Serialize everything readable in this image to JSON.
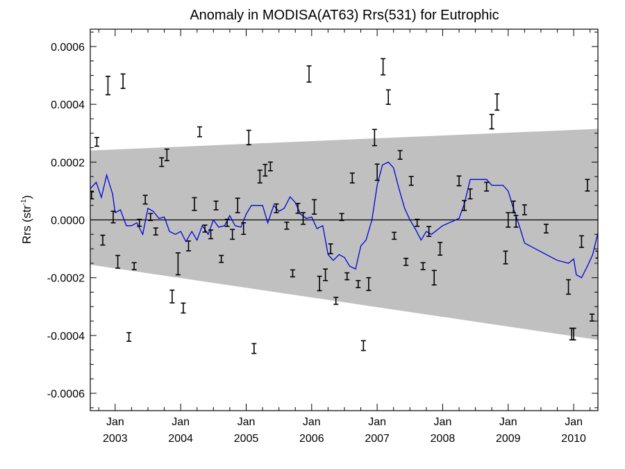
{
  "chart_data": {
    "type": "scatter",
    "title": "Anomaly in MODISA(AT63) Rrs(531) for Eutrophic",
    "ylabel_main": "Rrs (str",
    "ylabel_sup": "-1",
    "ylabel_close": ")",
    "xlabel": "",
    "xlim": [
      2002.62,
      2010.37
    ],
    "ylim": [
      -0.00066,
      0.00066
    ],
    "yticks": [
      -0.0006,
      -0.0004,
      -0.0002,
      0.0,
      0.0002,
      0.0004,
      0.0006
    ],
    "ytick_labels": [
      "-0.0006",
      "-0.0004",
      "-0.0002",
      "0.0000",
      "0.0002",
      "0.0004",
      "0.0006"
    ],
    "xticks": [
      {
        "value": 2003.0,
        "month": "Jan",
        "year": "2003"
      },
      {
        "value": 2004.0,
        "month": "Jan",
        "year": "2004"
      },
      {
        "value": 2005.0,
        "month": "Jan",
        "year": "2005"
      },
      {
        "value": 2006.0,
        "month": "Jan",
        "year": "2006"
      },
      {
        "value": 2007.0,
        "month": "Jan",
        "year": "2007"
      },
      {
        "value": 2008.0,
        "month": "Jan",
        "year": "2008"
      },
      {
        "value": 2009.0,
        "month": "Jan",
        "year": "2009"
      },
      {
        "value": 2010.0,
        "month": "Jan",
        "year": "2010"
      }
    ],
    "zero_line": 0.0,
    "band": {
      "color": "#c0c0c0",
      "upper": [
        [
          2002.62,
          0.00024
        ],
        [
          2010.37,
          0.000315
        ]
      ],
      "lower": [
        [
          2002.62,
          -0.000155
        ],
        [
          2010.37,
          -0.000415
        ]
      ]
    },
    "error_bars": {
      "color": "#000000",
      "points": [
        {
          "x": 2002.64,
          "y": 8.5e-05,
          "e": 1.2e-05
        },
        {
          "x": 2002.72,
          "y": 0.00027,
          "e": 1.5e-05
        },
        {
          "x": 2002.81,
          "y": -7e-05,
          "e": 1.7e-05
        },
        {
          "x": 2002.89,
          "y": 0.000465,
          "e": 3.2e-05
        },
        {
          "x": 2002.97,
          "y": 1e-05,
          "e": 2e-05
        },
        {
          "x": 2003.04,
          "y": -0.000145,
          "e": 2.2e-05
        },
        {
          "x": 2003.12,
          "y": 0.00048,
          "e": 2.5e-05
        },
        {
          "x": 2003.21,
          "y": -0.000405,
          "e": 1.5e-05
        },
        {
          "x": 2003.29,
          "y": -0.00016,
          "e": 1.2e-05
        },
        {
          "x": 2003.37,
          "y": -1e-05,
          "e": 1.2e-05
        },
        {
          "x": 2003.46,
          "y": 7e-05,
          "e": 1.5e-05
        },
        {
          "x": 2003.54,
          "y": 1e-05,
          "e": 1.2e-05
        },
        {
          "x": 2003.62,
          "y": -4e-05,
          "e": 1.2e-05
        },
        {
          "x": 2003.71,
          "y": 0.0002,
          "e": 1.5e-05
        },
        {
          "x": 2003.79,
          "y": 0.000225,
          "e": 2e-05
        },
        {
          "x": 2003.87,
          "y": -0.000265,
          "e": 2.2e-05
        },
        {
          "x": 2003.96,
          "y": -0.000152,
          "e": 3.8e-05
        },
        {
          "x": 2004.04,
          "y": -0.000305,
          "e": 1.7e-05
        },
        {
          "x": 2004.12,
          "y": -9e-05,
          "e": 1.7e-05
        },
        {
          "x": 2004.21,
          "y": 5.5e-05,
          "e": 2.2e-05
        },
        {
          "x": 2004.29,
          "y": 0.000305,
          "e": 1.7e-05
        },
        {
          "x": 2004.37,
          "y": -3e-05,
          "e": 1.2e-05
        },
        {
          "x": 2004.46,
          "y": -5e-05,
          "e": 1.5e-05
        },
        {
          "x": 2004.54,
          "y": 5e-05,
          "e": 1.5e-05
        },
        {
          "x": 2004.62,
          "y": -0.000135,
          "e": 1.2e-05
        },
        {
          "x": 2004.71,
          "y": -1e-05,
          "e": 1.2e-05
        },
        {
          "x": 2004.79,
          "y": -5e-05,
          "e": 1.7e-05
        },
        {
          "x": 2004.87,
          "y": 5e-05,
          "e": 2.5e-05
        },
        {
          "x": 2004.96,
          "y": -3e-05,
          "e": 2e-05
        },
        {
          "x": 2005.04,
          "y": 0.000285,
          "e": 2.5e-05
        },
        {
          "x": 2005.12,
          "y": -0.000445,
          "e": 1.7e-05
        },
        {
          "x": 2005.21,
          "y": 0.00015,
          "e": 2.2e-05
        },
        {
          "x": 2005.29,
          "y": 0.000172,
          "e": 2e-05
        },
        {
          "x": 2005.37,
          "y": 0.000185,
          "e": 1.5e-05
        },
        {
          "x": 2005.46,
          "y": 4e-05,
          "e": 1.5e-05
        },
        {
          "x": 2005.62,
          "y": -2e-05,
          "e": 1.2e-05
        },
        {
          "x": 2005.71,
          "y": -0.000185,
          "e": 1.2e-05
        },
        {
          "x": 2005.79,
          "y": 4e-05,
          "e": 1.7e-05
        },
        {
          "x": 2005.87,
          "y": 5e-06,
          "e": 2e-05
        },
        {
          "x": 2005.96,
          "y": 0.000505,
          "e": 2.8e-05
        },
        {
          "x": 2006.04,
          "y": 4.5e-05,
          "e": 2.5e-05
        },
        {
          "x": 2006.12,
          "y": -0.00022,
          "e": 2.5e-05
        },
        {
          "x": 2006.21,
          "y": -0.00019,
          "e": 2e-05
        },
        {
          "x": 2006.29,
          "y": -0.0001,
          "e": 1.7e-05
        },
        {
          "x": 2006.37,
          "y": -0.00028,
          "e": 1.2e-05
        },
        {
          "x": 2006.46,
          "y": 1e-05,
          "e": 1.2e-05
        },
        {
          "x": 2006.54,
          "y": -0.000195,
          "e": 1.2e-05
        },
        {
          "x": 2006.62,
          "y": 0.000145,
          "e": 1.7e-05
        },
        {
          "x": 2006.71,
          "y": -0.000222,
          "e": 1.2e-05
        },
        {
          "x": 2006.79,
          "y": -0.000435,
          "e": 1.7e-05
        },
        {
          "x": 2006.87,
          "y": -0.000222,
          "e": 2.2e-05
        },
        {
          "x": 2006.96,
          "y": 0.000285,
          "e": 2.8e-05
        },
        {
          "x": 2007.0,
          "y": 0.000165,
          "e": 2.8e-05
        },
        {
          "x": 2007.09,
          "y": 0.00053,
          "e": 2.8e-05
        },
        {
          "x": 2007.17,
          "y": 0.000425,
          "e": 2.5e-05
        },
        {
          "x": 2007.26,
          "y": -5.5e-05,
          "e": 1.2e-05
        },
        {
          "x": 2007.35,
          "y": 0.000225,
          "e": 1.5e-05
        },
        {
          "x": 2007.44,
          "y": -0.000145,
          "e": 1.2e-05
        },
        {
          "x": 2007.52,
          "y": 0.000135,
          "e": 1.5e-05
        },
        {
          "x": 2007.61,
          "y": -1e-05,
          "e": 1.2e-05
        },
        {
          "x": 2007.7,
          "y": -0.00016,
          "e": 1.2e-05
        },
        {
          "x": 2007.79,
          "y": -4e-05,
          "e": 1.7e-05
        },
        {
          "x": 2007.87,
          "y": -0.0002,
          "e": 2.5e-05
        },
        {
          "x": 2007.96,
          "y": -0.0001,
          "e": 2.2e-05
        },
        {
          "x": 2008.25,
          "y": 0.000135,
          "e": 1.7e-05
        },
        {
          "x": 2008.33,
          "y": 5e-05,
          "e": 1.7e-05
        },
        {
          "x": 2008.42,
          "y": 9e-05,
          "e": 1.7e-05
        },
        {
          "x": 2008.67,
          "y": 0.000115,
          "e": 1.5e-05
        },
        {
          "x": 2008.75,
          "y": 0.00034,
          "e": 2.5e-05
        },
        {
          "x": 2008.83,
          "y": 0.000408,
          "e": 2.8e-05
        },
        {
          "x": 2008.96,
          "y": -0.00013,
          "e": 2.2e-05
        },
        {
          "x": 2009.0,
          "y": 0.0,
          "e": 2.5e-05
        },
        {
          "x": 2009.08,
          "y": 4.5e-05,
          "e": 2e-05
        },
        {
          "x": 2009.12,
          "y": -5e-06,
          "e": 2e-05
        },
        {
          "x": 2009.25,
          "y": 3.5e-05,
          "e": 1.7e-05
        },
        {
          "x": 2009.58,
          "y": -3e-05,
          "e": 1.5e-05
        },
        {
          "x": 2009.92,
          "y": -0.000232,
          "e": 2.5e-05
        },
        {
          "x": 2009.97,
          "y": -0.000395,
          "e": 2e-05
        },
        {
          "x": 2010.0,
          "y": -0.000395,
          "e": 2e-05
        },
        {
          "x": 2010.12,
          "y": -7.5e-05,
          "e": 2e-05
        },
        {
          "x": 2010.21,
          "y": 0.00012,
          "e": 2e-05
        },
        {
          "x": 2010.28,
          "y": -0.000338,
          "e": 1.2e-05
        },
        {
          "x": 2010.37,
          "y": -0.00012,
          "e": 1.2e-05
        }
      ]
    },
    "smooth_line": {
      "color": "#0000d8",
      "points": [
        [
          2002.62,
          0.000108
        ],
        [
          2002.71,
          0.00013
        ],
        [
          2002.79,
          7.8e-05
        ],
        [
          2002.87,
          0.000155
        ],
        [
          2002.96,
          9e-05
        ],
        [
          2003.0,
          2.5e-05
        ],
        [
          2003.08,
          3.5e-05
        ],
        [
          2003.17,
          -2e-05
        ],
        [
          2003.25,
          -2e-05
        ],
        [
          2003.33,
          -1e-05
        ],
        [
          2003.42,
          -5e-05
        ],
        [
          2003.5,
          4e-05
        ],
        [
          2003.58,
          3e-05
        ],
        [
          2003.67,
          5e-06
        ],
        [
          2003.75,
          1e-05
        ],
        [
          2003.83,
          -4e-05
        ],
        [
          2003.92,
          -5e-05
        ],
        [
          2004.0,
          -4e-05
        ],
        [
          2004.08,
          -7.5e-05
        ],
        [
          2004.17,
          -4e-05
        ],
        [
          2004.25,
          -7e-05
        ],
        [
          2004.33,
          -2e-05
        ],
        [
          2004.42,
          -5e-05
        ],
        [
          2004.5,
          0.0
        ],
        [
          2004.58,
          -2.5e-05
        ],
        [
          2004.67,
          -2e-05
        ],
        [
          2004.75,
          1.5e-05
        ],
        [
          2004.83,
          -2e-05
        ],
        [
          2004.92,
          -2.5e-05
        ],
        [
          2005.0,
          2e-05
        ],
        [
          2005.08,
          5e-05
        ],
        [
          2005.17,
          5e-05
        ],
        [
          2005.25,
          5e-05
        ],
        [
          2005.33,
          -1e-05
        ],
        [
          2005.42,
          5e-05
        ],
        [
          2005.5,
          3e-05
        ],
        [
          2005.58,
          4e-05
        ],
        [
          2005.67,
          8e-05
        ],
        [
          2005.75,
          6e-05
        ],
        [
          2005.83,
          2e-05
        ],
        [
          2005.92,
          5e-06
        ],
        [
          2006.0,
          1e-05
        ],
        [
          2006.08,
          -3e-05
        ],
        [
          2006.17,
          -2e-05
        ],
        [
          2006.25,
          -0.00012
        ],
        [
          2006.33,
          -0.00014
        ],
        [
          2006.42,
          -0.00012
        ],
        [
          2006.5,
          -0.00013
        ],
        [
          2006.58,
          -0.00016
        ],
        [
          2006.67,
          -0.00017
        ],
        [
          2006.75,
          -9e-05
        ],
        [
          2006.83,
          -7e-05
        ],
        [
          2006.92,
          0.0
        ],
        [
          2007.0,
          0.00012
        ],
        [
          2007.08,
          0.00019
        ],
        [
          2007.17,
          0.0002
        ],
        [
          2007.25,
          0.00018
        ],
        [
          2007.33,
          0.00011
        ],
        [
          2007.42,
          4e-05
        ],
        [
          2007.5,
          0.0
        ],
        [
          2007.58,
          -3e-05
        ],
        [
          2007.67,
          -7e-05
        ],
        [
          2007.75,
          -4e-05
        ],
        [
          2007.83,
          -5e-05
        ],
        [
          2008.0,
          -2e-05
        ],
        [
          2008.25,
          5e-06
        ],
        [
          2008.33,
          5.5e-05
        ],
        [
          2008.42,
          0.00014
        ],
        [
          2008.67,
          0.00014
        ],
        [
          2008.75,
          0.00012
        ],
        [
          2008.83,
          0.00012
        ],
        [
          2008.92,
          0.00012
        ],
        [
          2009.0,
          0.0001
        ],
        [
          2009.08,
          4e-05
        ],
        [
          2009.17,
          -2e-05
        ],
        [
          2009.25,
          -8e-05
        ],
        [
          2009.5,
          -0.00011
        ],
        [
          2009.75,
          -0.00014
        ],
        [
          2009.92,
          -0.00015
        ],
        [
          2010.0,
          -0.000135
        ],
        [
          2010.04,
          -0.00019
        ],
        [
          2010.12,
          -0.0002
        ],
        [
          2010.21,
          -0.00016
        ],
        [
          2010.29,
          -0.00012
        ],
        [
          2010.37,
          -4.5e-05
        ]
      ]
    }
  }
}
